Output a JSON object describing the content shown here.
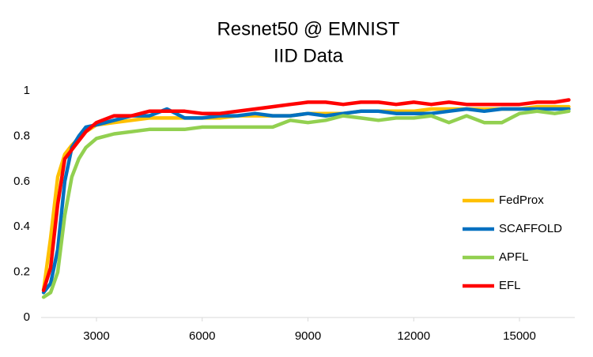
{
  "chart_data": {
    "type": "line",
    "title": "Resnet50 @ EMNIST",
    "subtitle": "IID Data",
    "x": [
      1500,
      1700,
      1900,
      2100,
      2300,
      2500,
      2700,
      3000,
      3500,
      4000,
      4500,
      5000,
      5500,
      6000,
      6500,
      7000,
      7500,
      8000,
      8500,
      9000,
      9500,
      10000,
      10500,
      11000,
      11500,
      12000,
      12500,
      13000,
      13500,
      14000,
      14500,
      15000,
      15500,
      16000,
      16400
    ],
    "series": [
      {
        "name": "FedProx",
        "color": "#ffc000",
        "values": [
          0.12,
          0.35,
          0.62,
          0.72,
          0.76,
          0.79,
          0.82,
          0.85,
          0.86,
          0.87,
          0.88,
          0.88,
          0.88,
          0.88,
          0.88,
          0.89,
          0.89,
          0.89,
          0.89,
          0.9,
          0.9,
          0.9,
          0.91,
          0.91,
          0.91,
          0.91,
          0.92,
          0.92,
          0.92,
          0.92,
          0.92,
          0.92,
          0.93,
          0.93,
          0.93
        ]
      },
      {
        "name": "SCAFFOLD",
        "color": "#0070c0",
        "values": [
          0.11,
          0.15,
          0.3,
          0.6,
          0.75,
          0.8,
          0.84,
          0.85,
          0.87,
          0.89,
          0.89,
          0.92,
          0.88,
          0.88,
          0.89,
          0.89,
          0.9,
          0.89,
          0.89,
          0.9,
          0.89,
          0.9,
          0.91,
          0.91,
          0.9,
          0.9,
          0.9,
          0.91,
          0.92,
          0.91,
          0.92,
          0.92,
          0.92,
          0.92,
          0.92
        ]
      },
      {
        "name": "APFL",
        "color": "#92d050",
        "values": [
          0.09,
          0.11,
          0.2,
          0.45,
          0.62,
          0.7,
          0.75,
          0.79,
          0.81,
          0.82,
          0.83,
          0.83,
          0.83,
          0.84,
          0.84,
          0.84,
          0.84,
          0.84,
          0.87,
          0.86,
          0.87,
          0.89,
          0.88,
          0.87,
          0.88,
          0.88,
          0.89,
          0.86,
          0.89,
          0.86,
          0.86,
          0.9,
          0.91,
          0.9,
          0.91
        ]
      },
      {
        "name": "EFL",
        "color": "#ff0000",
        "values": [
          0.12,
          0.22,
          0.5,
          0.7,
          0.74,
          0.78,
          0.82,
          0.86,
          0.89,
          0.89,
          0.91,
          0.91,
          0.91,
          0.9,
          0.9,
          0.91,
          0.92,
          0.93,
          0.94,
          0.95,
          0.95,
          0.94,
          0.95,
          0.95,
          0.94,
          0.95,
          0.94,
          0.95,
          0.94,
          0.94,
          0.94,
          0.94,
          0.95,
          0.95,
          0.96
        ]
      }
    ],
    "xlim": [
      1430,
      16570
    ],
    "xticks": [
      3000,
      6000,
      9000,
      12000,
      15000
    ],
    "ylim": [
      0,
      1
    ],
    "yticks": [
      0,
      0.2,
      0.4,
      0.6,
      0.8,
      1
    ],
    "grid": false,
    "legend": "right"
  }
}
